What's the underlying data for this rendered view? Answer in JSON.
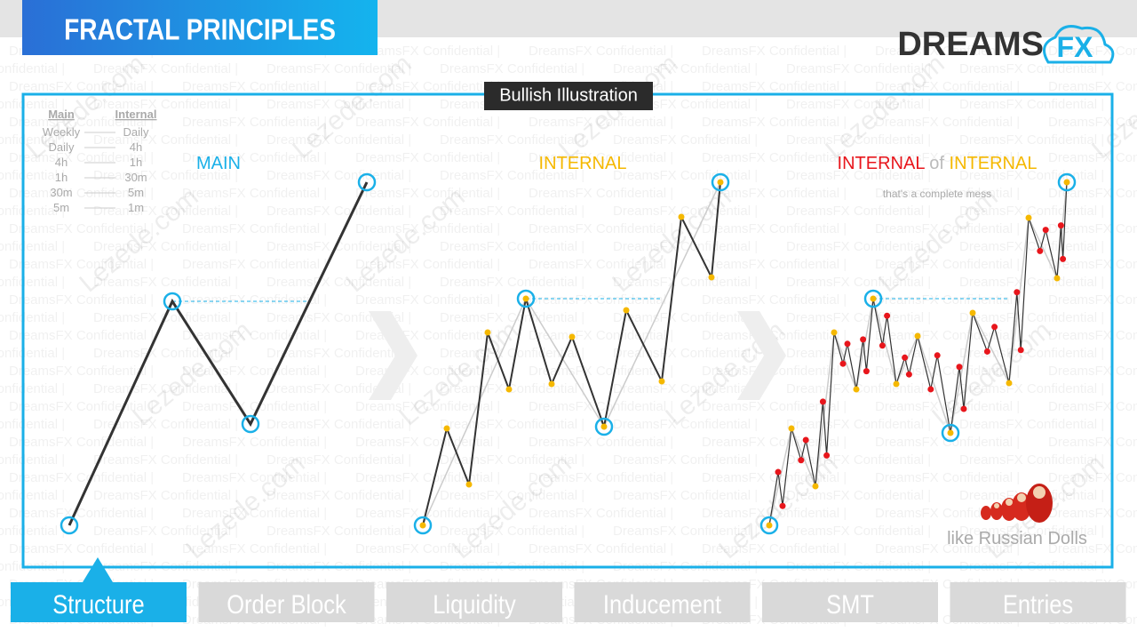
{
  "header": {
    "title": "FRACTAL PRINCIPLES",
    "logo_main": "DREAMS",
    "logo_accent": "FX",
    "subtitle": "Bullish Illustration"
  },
  "watermarks": {
    "confidential": "DreamsFX Confidential |",
    "site": "Lezede.com"
  },
  "timeframes": {
    "headers": [
      "Main",
      "Internal"
    ],
    "rows": [
      [
        "Weekly",
        "Daily"
      ],
      [
        "Daily",
        "4h"
      ],
      [
        "4h",
        "1h"
      ],
      [
        "1h",
        "30m"
      ],
      [
        "30m",
        "5m"
      ],
      [
        "5m",
        "1m"
      ]
    ]
  },
  "panels": {
    "main": "MAIN",
    "internal": "INTERNAL",
    "internal_of_internal": [
      "INTERNAL",
      "of",
      "INTERNAL"
    ],
    "note": "that's a complete mess",
    "dolls": "like Russian Dolls"
  },
  "tabs": [
    "Structure",
    "Order Block",
    "Liquidity",
    "Inducement",
    "SMT",
    "Entries"
  ]
}
